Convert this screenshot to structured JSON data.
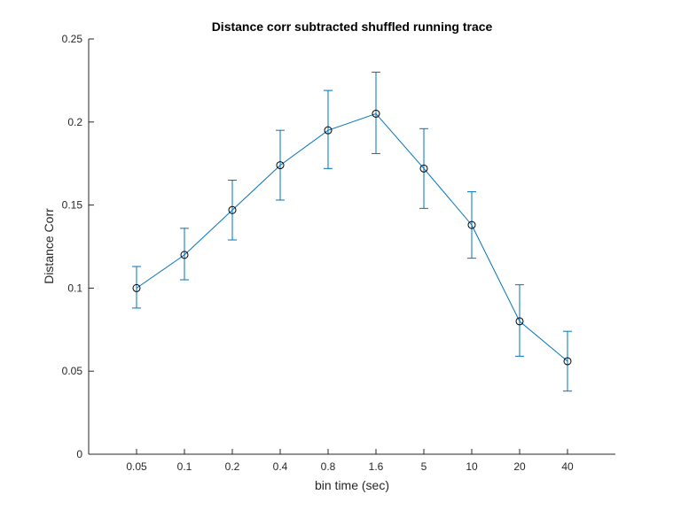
{
  "chart_data": {
    "type": "line",
    "title": "Distance corr subtracted shuffled running trace",
    "xlabel": "bin time (sec)",
    "ylabel": "Distance Corr",
    "categories": [
      "0.05",
      "0.1",
      "0.2",
      "0.4",
      "0.8",
      "1.6",
      "5",
      "10",
      "20",
      "40"
    ],
    "series": [
      {
        "values": [
          0.1,
          0.12,
          0.147,
          0.174,
          0.195,
          0.205,
          0.172,
          0.138,
          0.08,
          0.056
        ],
        "error_low": [
          0.088,
          0.105,
          0.129,
          0.153,
          0.172,
          0.181,
          0.148,
          0.118,
          0.059,
          0.038
        ],
        "error_high": [
          0.113,
          0.136,
          0.165,
          0.195,
          0.219,
          0.23,
          0.196,
          0.158,
          0.102,
          0.074
        ],
        "color": "#0072BD",
        "marker": "open-circle",
        "marker_color": "#000000"
      }
    ],
    "ylim": [
      0,
      0.25
    ],
    "yticks": [
      "0",
      "0.05",
      "0.1",
      "0.15",
      "0.2",
      "0.25"
    ],
    "grid": false
  }
}
